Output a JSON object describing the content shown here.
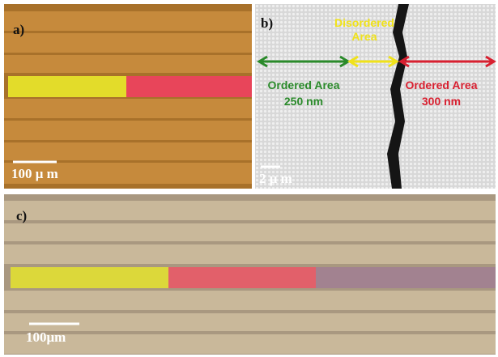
{
  "panels": [
    {
      "label": "a)",
      "scale_bar": "100 μ m"
    },
    {
      "label": "b)",
      "scale_bar": "2 μ m",
      "disordered": [
        "Disordered",
        "Area"
      ],
      "ordered_left": {
        "title": "Ordered Area",
        "size": "250 nm"
      },
      "ordered_right": {
        "title": "Ordered Area",
        "size": "300 nm"
      }
    },
    {
      "label": "c)",
      "scale_bar": "100μm"
    }
  ]
}
